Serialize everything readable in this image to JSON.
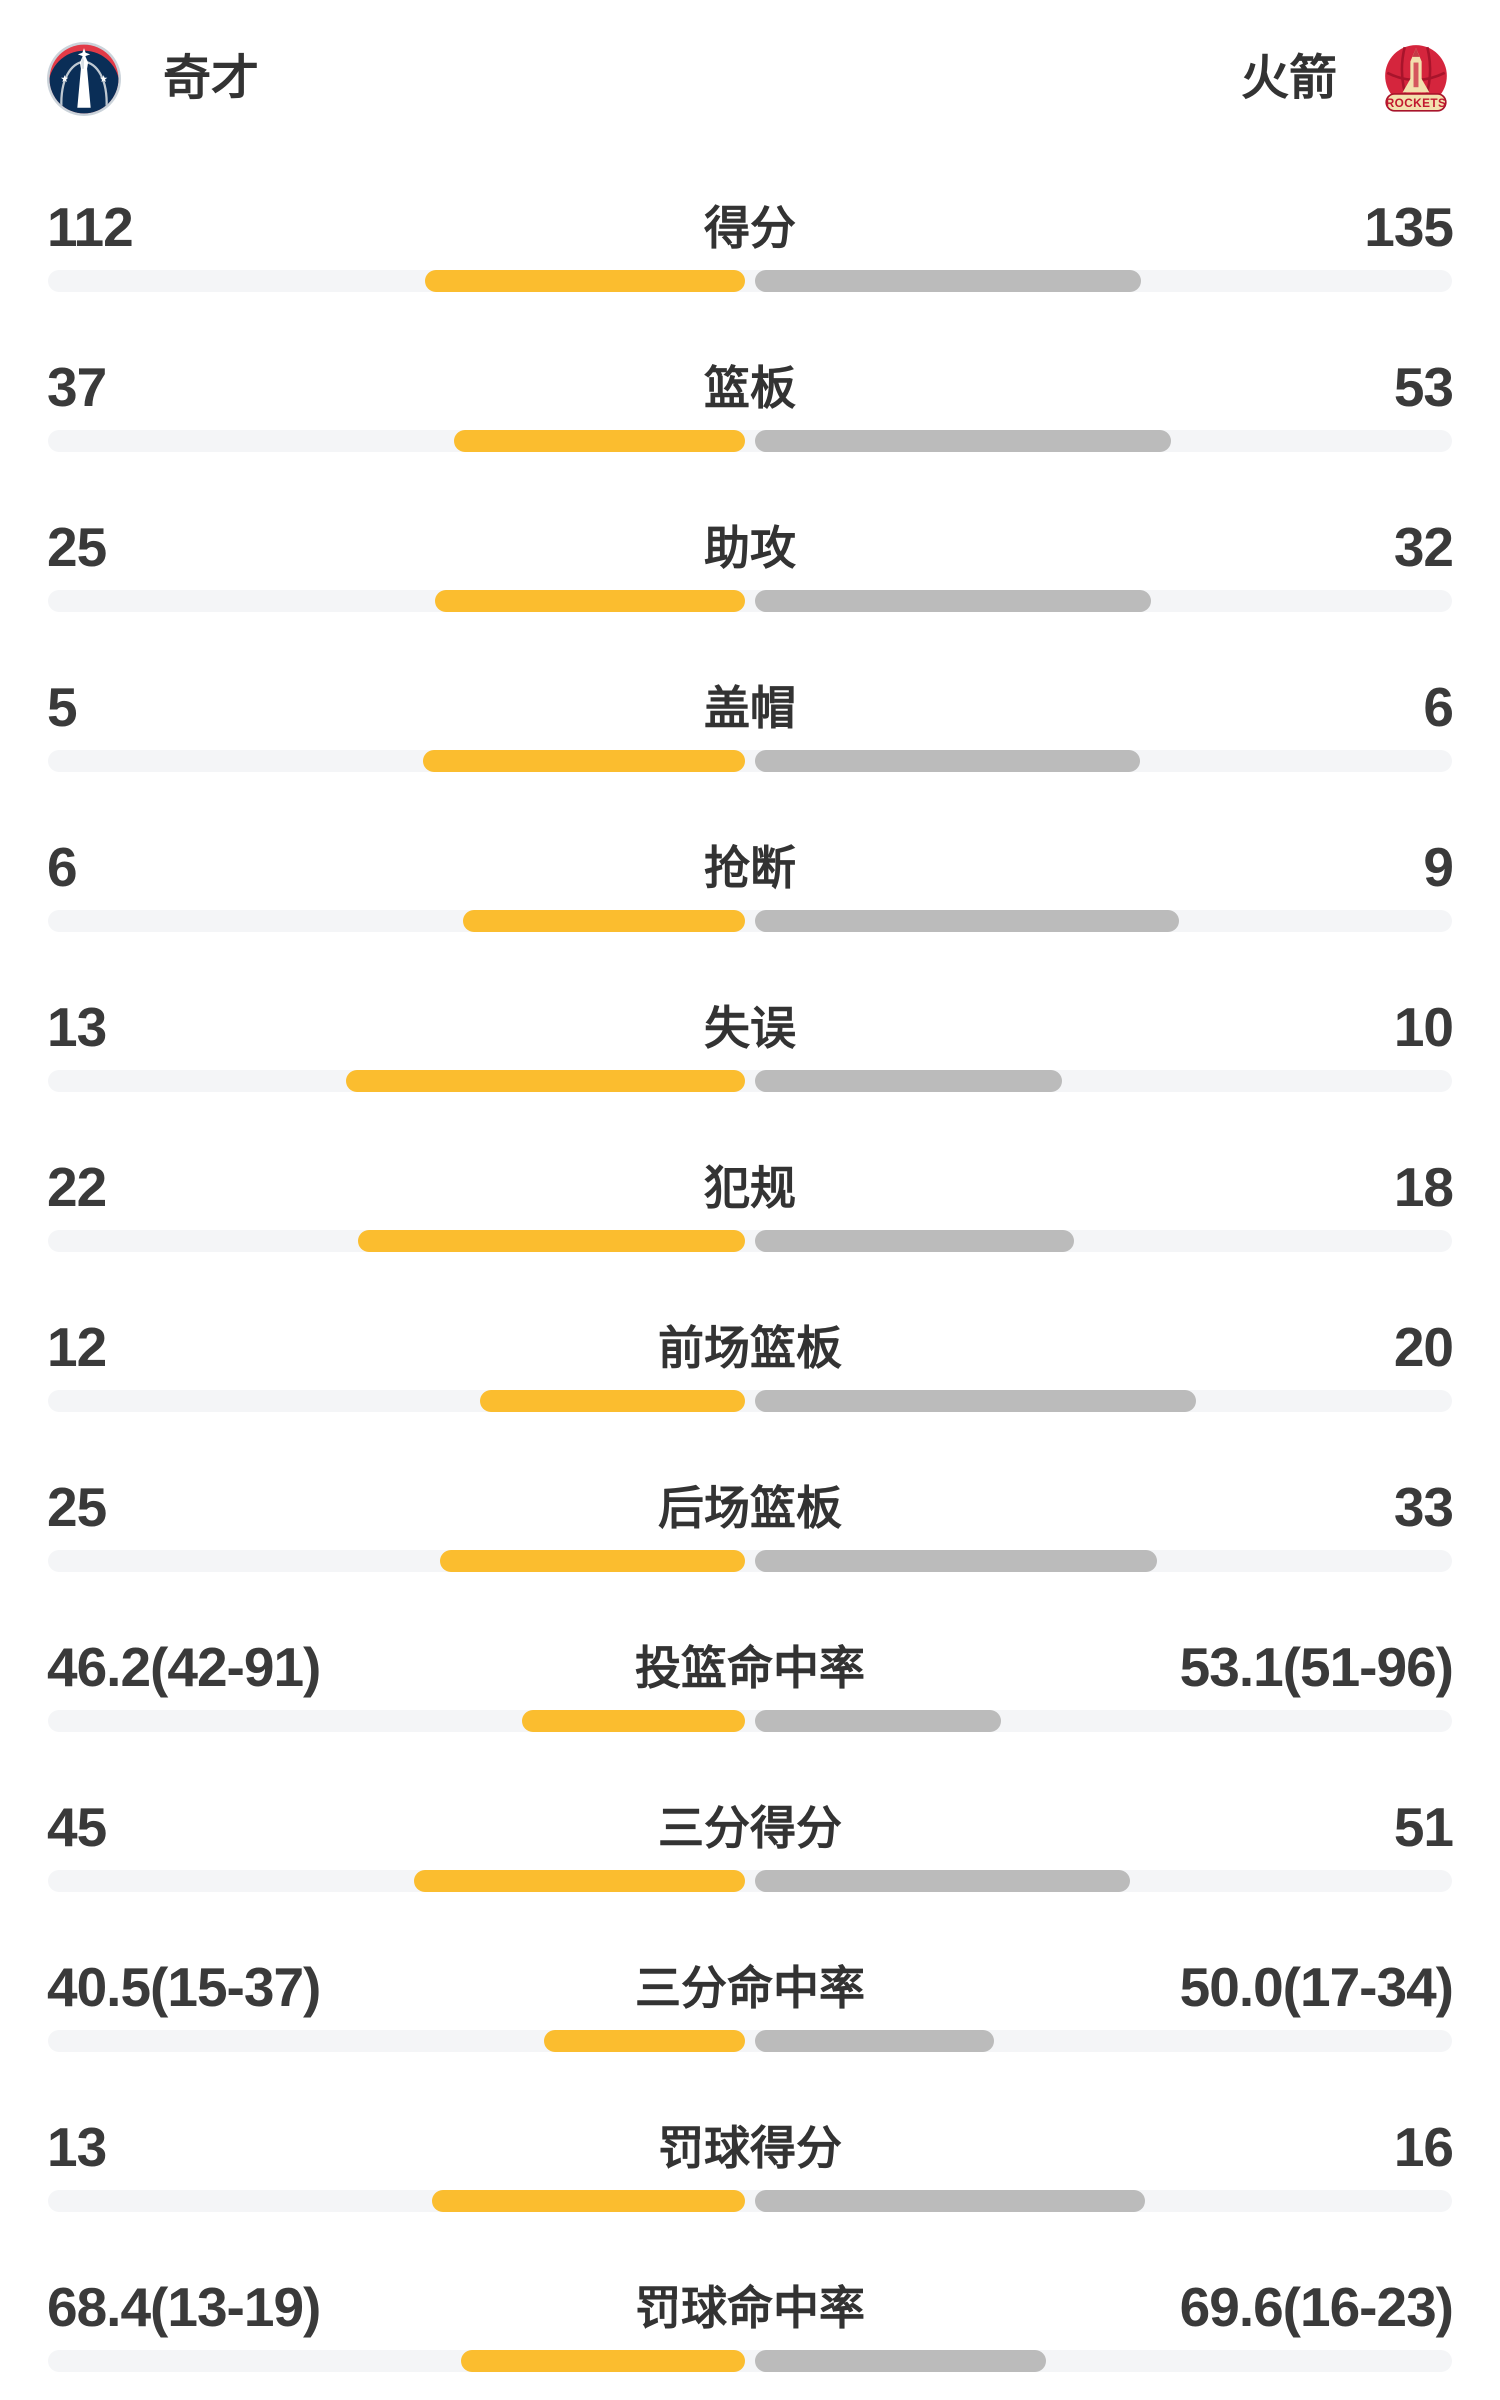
{
  "header": {
    "home": {
      "name": "奇才"
    },
    "away": {
      "name": "火箭",
      "logo_text": "ROCKETS"
    }
  },
  "colors": {
    "home_bar": "#FBBD2F",
    "away_bar": "#BBBBBB",
    "bar_track": "#F4F5F7",
    "value_text": "#3A3A3A",
    "label_text": "#333333",
    "wizards_navy": "#0A2E57",
    "wizards_red": "#E23A47",
    "wizards_silver": "#CBD3DA",
    "rockets_red": "#D5253D",
    "rockets_dark_red": "#A8142B",
    "rockets_cream": "#F3E0AE"
  },
  "chart_data": {
    "type": "bar",
    "subtype": "paired-horizontal-team-comparison",
    "legend_position": "none",
    "grid": false,
    "home_team": "奇才",
    "away_team": "火箭",
    "bar_note": "home bars grow leftward from center (yellow), away bars grow rightward (gray); *_bar_pct is bar length as % of full track width",
    "rows": [
      {
        "label": "得分",
        "home": "112",
        "away": "135",
        "home_value": 112,
        "away_value": 135,
        "home_bar_pct": 22.8,
        "away_bar_pct": 27.5
      },
      {
        "label": "篮板",
        "home": "37",
        "away": "53",
        "home_value": 37,
        "away_value": 53,
        "home_bar_pct": 20.7,
        "away_bar_pct": 29.6
      },
      {
        "label": "助攻",
        "home": "25",
        "away": "32",
        "home_value": 25,
        "away_value": 32,
        "home_bar_pct": 22.1,
        "away_bar_pct": 28.2
      },
      {
        "label": "盖帽",
        "home": "5",
        "away": "6",
        "home_value": 5,
        "away_value": 6,
        "home_bar_pct": 22.9,
        "away_bar_pct": 27.4
      },
      {
        "label": "抢断",
        "home": "6",
        "away": "9",
        "home_value": 6,
        "away_value": 9,
        "home_bar_pct": 20.1,
        "away_bar_pct": 30.2
      },
      {
        "label": "失误",
        "home": "13",
        "away": "10",
        "home_value": 13,
        "away_value": 10,
        "home_bar_pct": 28.4,
        "away_bar_pct": 21.9
      },
      {
        "label": "犯规",
        "home": "22",
        "away": "18",
        "home_value": 22,
        "away_value": 18,
        "home_bar_pct": 27.6,
        "away_bar_pct": 22.7
      },
      {
        "label": "前场篮板",
        "home": "12",
        "away": "20",
        "home_value": 12,
        "away_value": 20,
        "home_bar_pct": 18.9,
        "away_bar_pct": 31.4
      },
      {
        "label": "后场篮板",
        "home": "25",
        "away": "33",
        "home_value": 25,
        "away_value": 33,
        "home_bar_pct": 21.7,
        "away_bar_pct": 28.6
      },
      {
        "label": "投篮命中率",
        "home": "46.2(42-91)",
        "away": "53.1(51-96)",
        "home_value": 46.2,
        "away_value": 53.1,
        "home_bar_pct": 15.9,
        "away_bar_pct": 17.5
      },
      {
        "label": "三分得分",
        "home": "45",
        "away": "51",
        "home_value": 45,
        "away_value": 51,
        "home_bar_pct": 23.6,
        "away_bar_pct": 26.7
      },
      {
        "label": "三分命中率",
        "home": "40.5(15-37)",
        "away": "50.0(17-34)",
        "home_value": 40.5,
        "away_value": 50.0,
        "home_bar_pct": 14.3,
        "away_bar_pct": 17.0
      },
      {
        "label": "罚球得分",
        "home": "13",
        "away": "16",
        "home_value": 13,
        "away_value": 16,
        "home_bar_pct": 22.3,
        "away_bar_pct": 27.8
      },
      {
        "label": "罚球命中率",
        "home": "68.4(13-19)",
        "away": "69.6(16-23)",
        "home_value": 68.4,
        "away_value": 69.6,
        "home_bar_pct": 20.2,
        "away_bar_pct": 20.7
      }
    ]
  }
}
